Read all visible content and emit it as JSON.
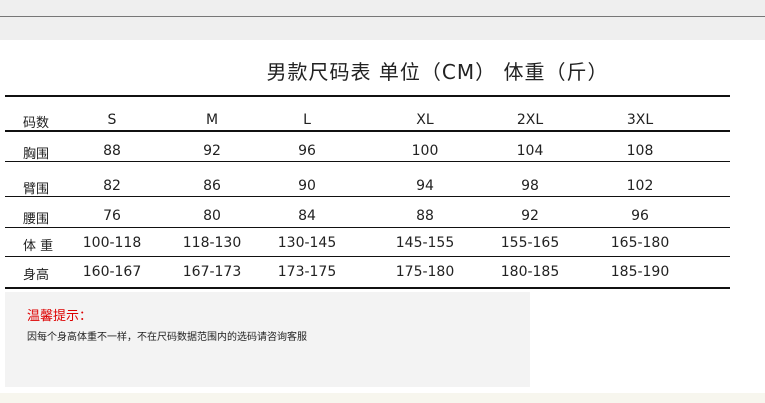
{
  "title": "男款尺码表   单位（CM） 体重（斤）",
  "header": {
    "label": "码数",
    "sizes": [
      "S",
      "M",
      "L",
      "XL",
      "2XL",
      "3XL"
    ]
  },
  "rows": [
    {
      "label": "胸围",
      "values": [
        "88",
        "92",
        "96",
        "100",
        "104",
        "108"
      ]
    },
    {
      "label": "臂围",
      "values": [
        "82",
        "86",
        "90",
        "94",
        "98",
        "102"
      ]
    },
    {
      "label": "腰围",
      "values": [
        "76",
        "80",
        "84",
        "88",
        "92",
        "96"
      ]
    },
    {
      "label": "体 重",
      "values": [
        "100-118",
        "118-130",
        "130-145",
        "145-155",
        "155-165",
        "165-180"
      ]
    },
    {
      "label": "身高",
      "values": [
        "160-167",
        "167-173",
        "173-175",
        "175-180",
        "180-185",
        "185-190"
      ]
    }
  ],
  "notice": {
    "title": "温馨提示：",
    "text": "因每个身高体重不一样，不在尺码数据范围内的选码请咨询客服",
    "title_color": "#dd0000"
  }
}
